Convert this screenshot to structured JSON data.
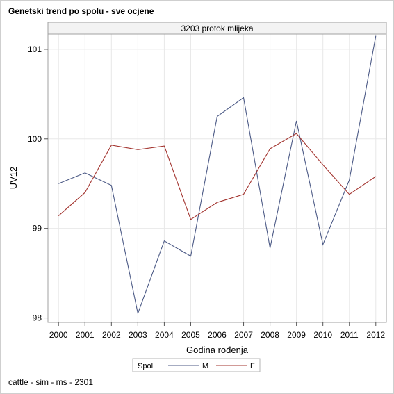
{
  "page": {
    "title": "Genetski trend po spolu - sve ocjene",
    "footnote": "cattle - sim - ms - 2301"
  },
  "chart_data": {
    "type": "line",
    "title": "Genetski trend po spolu - sve ocjene",
    "panel_title": "3203 protok mlijeka",
    "xlabel": "Godina rođenja",
    "ylabel": "UV12",
    "x": [
      2000,
      2001,
      2002,
      2003,
      2004,
      2005,
      2006,
      2007,
      2008,
      2009,
      2010,
      2011,
      2012
    ],
    "x_ticks": [
      "2000",
      "2001",
      "2002",
      "2003",
      "2004",
      "2005",
      "2006",
      "2007",
      "2008",
      "2009",
      "2010",
      "2011",
      "2012"
    ],
    "y_ticks": [
      98,
      99,
      100,
      101
    ],
    "y_tick_labels": [
      "98",
      "99",
      "100",
      "101"
    ],
    "xlim": [
      1999.6,
      2012.4
    ],
    "ylim": [
      97.95,
      101.17
    ],
    "grid": true,
    "legend": {
      "title": "Spol",
      "placement": "bottom"
    },
    "series": [
      {
        "name": "M",
        "color": "#4c5a86",
        "values": [
          99.5,
          99.62,
          99.48,
          98.05,
          98.86,
          98.69,
          100.25,
          100.46,
          98.78,
          100.2,
          98.82,
          99.54,
          101.15
        ]
      },
      {
        "name": "F",
        "color": "#a3342f",
        "values": [
          99.14,
          99.4,
          99.93,
          99.88,
          99.92,
          99.1,
          99.29,
          99.38,
          99.89,
          100.06,
          99.71,
          99.38,
          99.58
        ]
      }
    ]
  }
}
